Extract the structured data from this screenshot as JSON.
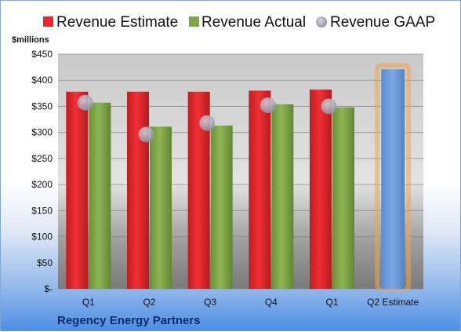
{
  "chart_data": {
    "type": "bar",
    "title": "",
    "company": "Regency Energy Partners",
    "unit_label": "$millions",
    "categories": [
      "Q1",
      "Q2",
      "Q3",
      "Q4",
      "Q1",
      "Q2 Estimate"
    ],
    "ylim": [
      0,
      450
    ],
    "yticks": [
      {
        "value": 0,
        "label": "$-"
      },
      {
        "value": 50,
        "label": "$50"
      },
      {
        "value": 100,
        "label": "$100"
      },
      {
        "value": 150,
        "label": "$150"
      },
      {
        "value": 200,
        "label": "$200"
      },
      {
        "value": 250,
        "label": "$250"
      },
      {
        "value": 300,
        "label": "$300"
      },
      {
        "value": 350,
        "label": "$350"
      },
      {
        "value": 400,
        "label": "$400"
      },
      {
        "value": 450,
        "label": "$450"
      }
    ],
    "grid": true,
    "legend_position": "top",
    "series": [
      {
        "name": "Revenue Estimate",
        "kind": "bar",
        "color": "#e8262b",
        "values": [
          378,
          378,
          378,
          380,
          382,
          null
        ]
      },
      {
        "name": "Revenue Actual",
        "kind": "bar",
        "color": "#7fa646",
        "values": [
          357,
          311,
          313,
          354,
          348,
          null
        ]
      },
      {
        "name": "Revenue GAAP",
        "kind": "marker",
        "color": "#b3b3c4",
        "values": [
          357,
          296,
          318,
          352,
          350,
          null
        ]
      }
    ],
    "estimate_bar": {
      "category": "Q2 Estimate",
      "value": 421,
      "color": "#6f9fdb",
      "glow": "#f3a24a"
    }
  }
}
